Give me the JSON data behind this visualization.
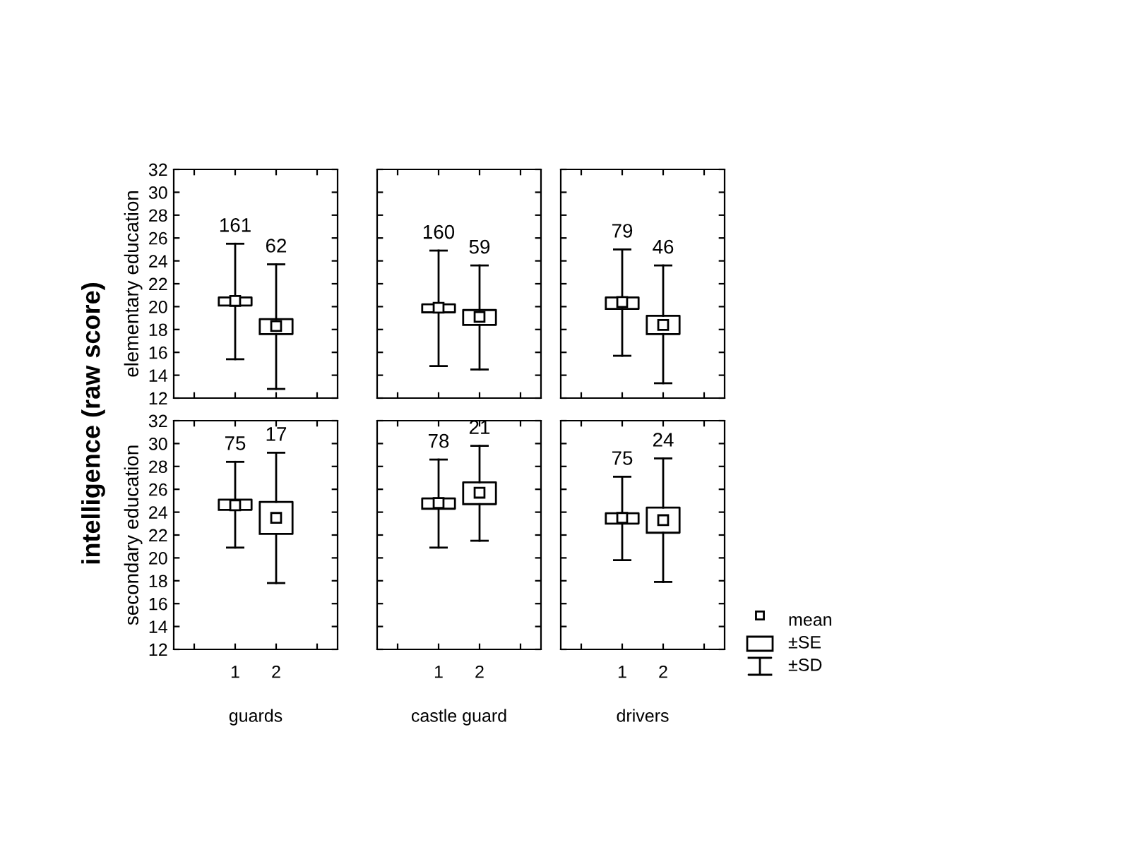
{
  "chart_data": [
    {
      "type": "box",
      "title": "intelligence (raw score)",
      "ylabel": "elementary education",
      "categories": [
        "1",
        "2"
      ],
      "ylim": [
        12,
        32
      ],
      "yticks": [
        12,
        14,
        16,
        18,
        20,
        22,
        24,
        26,
        28,
        30,
        32
      ],
      "tick_labels": "y",
      "boxes": [
        {
          "low": 15.4,
          "q1": 20.1,
          "q3": 20.8,
          "high": 25.5,
          "mean": 20.5
        },
        {
          "low": 12.8,
          "q1": 17.6,
          "q3": 18.9,
          "high": 23.7,
          "mean": 18.3
        }
      ],
      "annotations": [
        {
          "text": "161",
          "x": "1",
          "y": 25.5
        },
        {
          "text": "62",
          "x": "2",
          "y": 23.7
        }
      ]
    },
    {
      "type": "box",
      "categories": [
        "1",
        "2"
      ],
      "ylim": [
        12,
        32
      ],
      "yticks": [
        12,
        14,
        16,
        18,
        20,
        22,
        24,
        26,
        28,
        30,
        32
      ],
      "tick_labels": false,
      "boxes": [
        {
          "low": 14.8,
          "q1": 19.5,
          "q3": 20.2,
          "high": 24.9,
          "mean": 19.9
        },
        {
          "low": 14.5,
          "q1": 18.4,
          "q3": 19.7,
          "high": 23.6,
          "mean": 19.1
        }
      ],
      "annotations": [
        {
          "text": "160",
          "x": "1",
          "y": 24.9
        },
        {
          "text": "59",
          "x": "2",
          "y": 23.6
        }
      ]
    },
    {
      "type": "box",
      "categories": [
        "1",
        "2"
      ],
      "ylim": [
        12,
        32
      ],
      "yticks": [
        12,
        14,
        16,
        18,
        20,
        22,
        24,
        26,
        28,
        30,
        32
      ],
      "tick_labels": false,
      "boxes": [
        {
          "low": 15.7,
          "q1": 19.8,
          "q3": 20.8,
          "high": 25.0,
          "mean": 20.4
        },
        {
          "low": 13.3,
          "q1": 17.6,
          "q3": 19.2,
          "high": 23.6,
          "mean": 18.4
        }
      ],
      "annotations": [
        {
          "text": "79",
          "x": "1",
          "y": 25.0
        },
        {
          "text": "46",
          "x": "2",
          "y": 23.6
        }
      ]
    },
    {
      "type": "box",
      "ylabel": "secondary education",
      "xlabel": "guards",
      "categories": [
        "1",
        "2"
      ],
      "ylim": [
        12,
        32
      ],
      "yticks": [
        12,
        14,
        16,
        18,
        20,
        22,
        24,
        26,
        28,
        30,
        32
      ],
      "boxes": [
        {
          "low": 20.9,
          "q1": 24.2,
          "q3": 25.1,
          "high": 28.4,
          "mean": 24.6
        },
        {
          "low": 17.8,
          "q1": 22.1,
          "q3": 24.9,
          "high": 29.2,
          "mean": 23.5
        }
      ],
      "annotations": [
        {
          "text": "75",
          "x": "1",
          "y": 28.4
        },
        {
          "text": "17",
          "x": "2",
          "y": 29.2
        }
      ]
    },
    {
      "type": "box",
      "xlabel": "castle guard",
      "categories": [
        "1",
        "2"
      ],
      "ylim": [
        12,
        32
      ],
      "yticks": [
        12,
        14,
        16,
        18,
        20,
        22,
        24,
        26,
        28,
        30,
        32
      ],
      "tick_labels": "x",
      "boxes": [
        {
          "low": 20.9,
          "q1": 24.3,
          "q3": 25.2,
          "high": 28.6,
          "mean": 24.8
        },
        {
          "low": 21.5,
          "q1": 24.7,
          "q3": 26.6,
          "high": 29.8,
          "mean": 25.7
        }
      ],
      "annotations": [
        {
          "text": "78",
          "x": "1",
          "y": 28.6
        },
        {
          "text": "21",
          "x": "2",
          "y": 29.8
        }
      ]
    },
    {
      "type": "box",
      "xlabel": "drivers",
      "categories": [
        "1",
        "2"
      ],
      "ylim": [
        12,
        32
      ],
      "yticks": [
        12,
        14,
        16,
        18,
        20,
        22,
        24,
        26,
        28,
        30,
        32
      ],
      "tick_labels": "x",
      "boxes": [
        {
          "low": 19.8,
          "q1": 23.0,
          "q3": 23.9,
          "high": 27.1,
          "mean": 23.5
        },
        {
          "low": 17.9,
          "q1": 22.2,
          "q3": 24.4,
          "high": 28.7,
          "mean": 23.3
        }
      ],
      "annotations": [
        {
          "text": "75",
          "x": "1",
          "y": 27.1
        },
        {
          "text": "24",
          "x": "2",
          "y": 28.7
        },
        "mean",
        "±SE",
        "±SD"
      ]
    }
  ]
}
